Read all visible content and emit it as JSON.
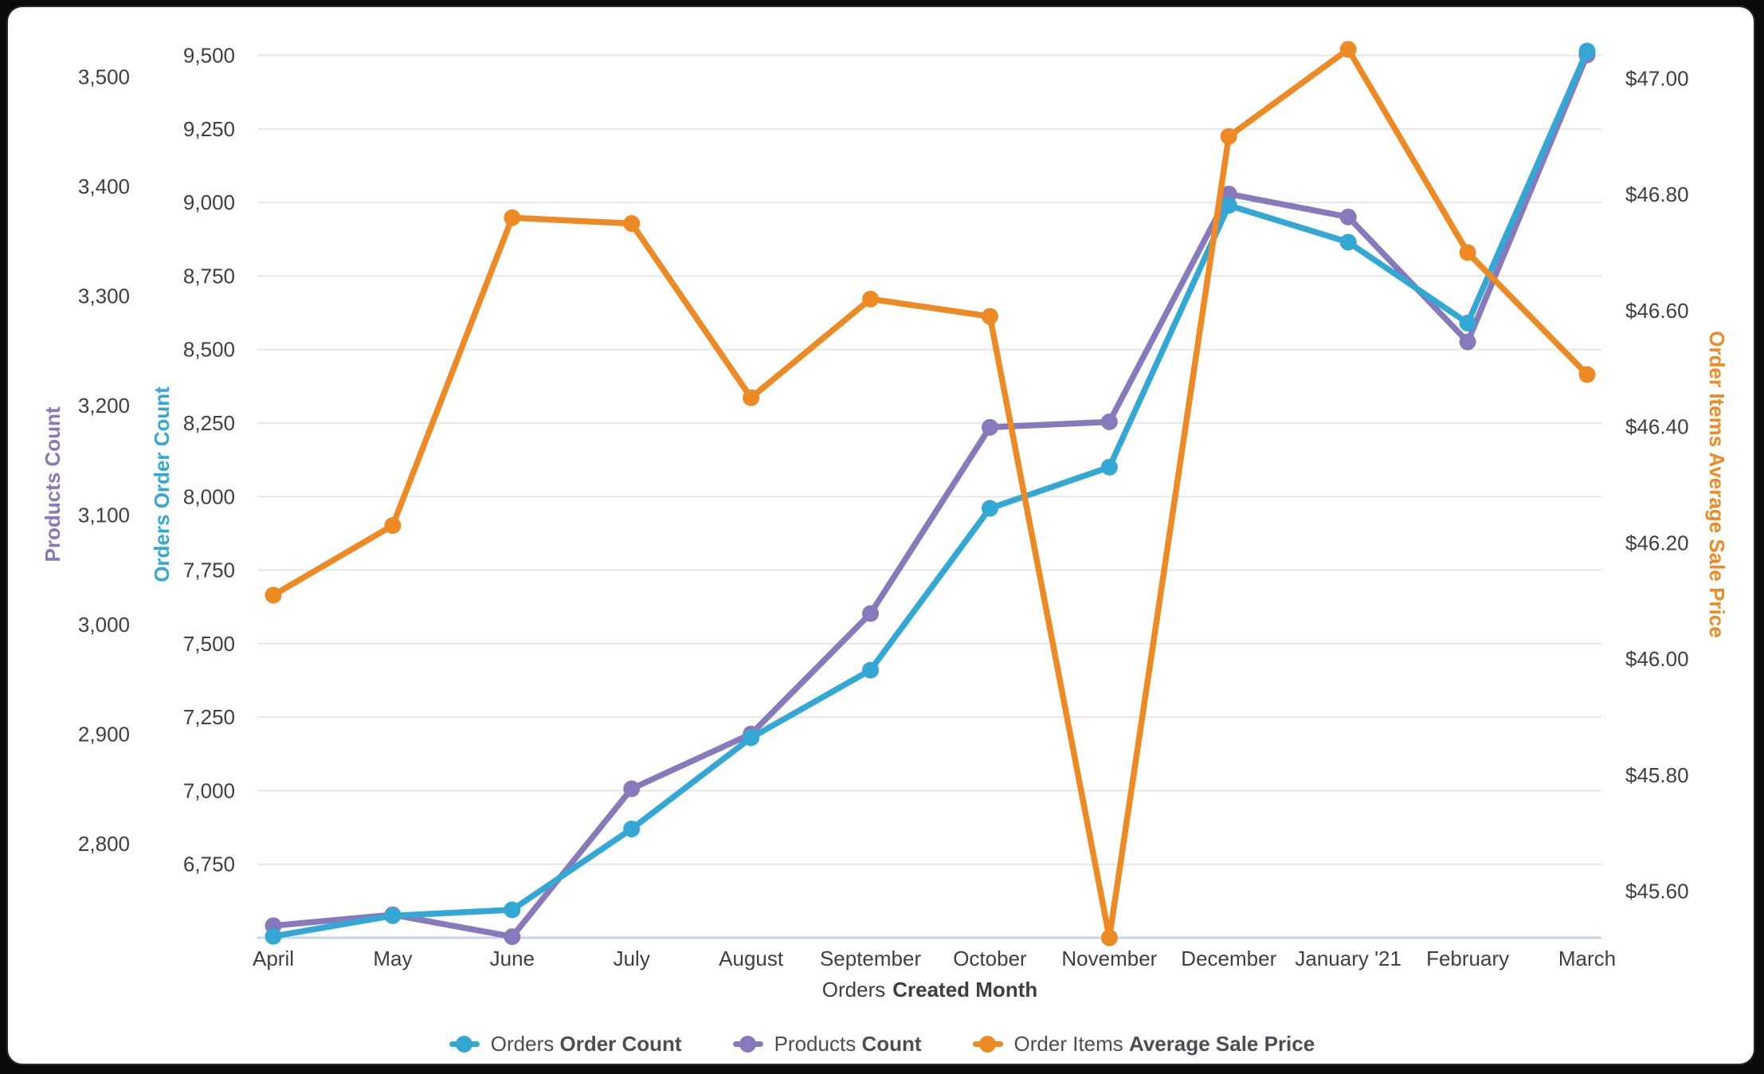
{
  "chart_data": {
    "type": "line",
    "x_categories": [
      "April",
      "May",
      "June",
      "July",
      "August",
      "September",
      "October",
      "November",
      "December",
      "January '21",
      "February",
      "March"
    ],
    "xlabel": {
      "prefix": "Orders",
      "bold": "Created Month"
    },
    "grid": "horizontal",
    "legend_position": "bottom-center",
    "axes": {
      "products": {
        "title": "Products Count",
        "side": "left-outer",
        "color": "#8879BD",
        "min": 2714,
        "max": 3541,
        "ticks": [
          2800,
          2900,
          3000,
          3100,
          3200,
          3300,
          3400,
          3500
        ],
        "tick_labels": [
          "2,800",
          "2,900",
          "3,000",
          "3,100",
          "3,200",
          "3,300",
          "3,400",
          "3,500"
        ]
      },
      "orders": {
        "title": "Orders Order Count",
        "side": "left-inner",
        "color": "#34A8D5",
        "min": 6500,
        "max": 9580,
        "ticks": [
          6750,
          7000,
          7250,
          7500,
          7750,
          8000,
          8250,
          8500,
          8750,
          9000,
          9250,
          9500
        ],
        "tick_labels": [
          "6,750",
          "7,000",
          "7,250",
          "7,500",
          "7,750",
          "8,000",
          "8,250",
          "8,500",
          "8,750",
          "9,000",
          "9,250",
          "9,500"
        ]
      },
      "price": {
        "title": "Order Items Average Sale Price",
        "side": "right",
        "color": "#EE8A24",
        "min": 45.52,
        "max": 47.08,
        "ticks": [
          45.6,
          45.8,
          46.0,
          46.2,
          46.4,
          46.6,
          46.8,
          47.0
        ],
        "tick_labels": [
          "$45.60",
          "$45.80",
          "$46.00",
          "$46.20",
          "$46.40",
          "$46.60",
          "$46.80",
          "$47.00"
        ]
      }
    },
    "series": [
      {
        "name": "Orders Order Count",
        "axis": "orders",
        "color": "#34A8D5",
        "values": [
          6505,
          6575,
          6595,
          6870,
          7180,
          7410,
          7960,
          8100,
          8990,
          8865,
          8590,
          9515
        ]
      },
      {
        "name": "Products Count",
        "axis": "products",
        "color": "#8879BD",
        "values": [
          2725,
          2735,
          2715,
          2850,
          2900,
          3010,
          3180,
          3185,
          3393,
          3372,
          3258,
          3520
        ]
      },
      {
        "name": "Order Items Average Sale Price",
        "axis": "price",
        "color": "#EE8A24",
        "values": [
          46.11,
          46.23,
          46.76,
          46.75,
          46.45,
          46.62,
          46.59,
          45.52,
          46.9,
          47.05,
          46.7,
          46.49
        ]
      }
    ],
    "legend": {
      "items": [
        {
          "prefix": "Orders",
          "bold": "Order Count",
          "color": "#34A8D5"
        },
        {
          "prefix": "Products",
          "bold": "Count",
          "color": "#8879BD"
        },
        {
          "prefix": "Order Items",
          "bold": "Average Sale Price",
          "color": "#EE8A24"
        }
      ]
    },
    "colors": {
      "grid": "#E7E7E7",
      "axis_line": "#C8D4EB",
      "tick_text": "#3C4043",
      "legend_text": "#4A4F55"
    }
  }
}
